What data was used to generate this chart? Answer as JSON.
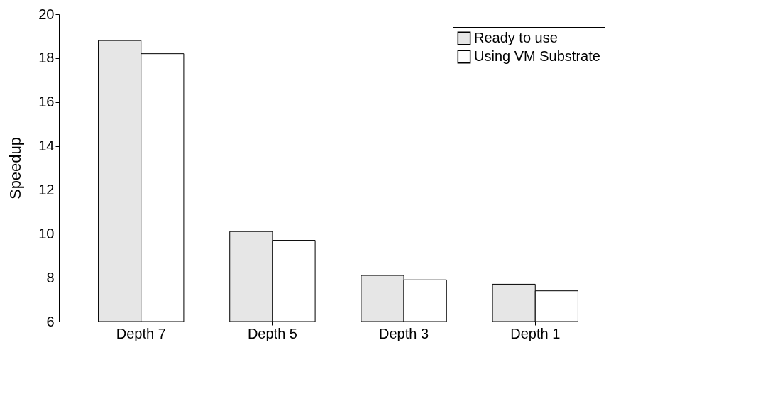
{
  "chart_data": {
    "type": "bar",
    "ylabel": "Speedup",
    "categories": [
      "Depth 7",
      "Depth 5",
      "Depth 3",
      "Depth 1"
    ],
    "series": [
      {
        "name": "Ready to use",
        "color": "#e6e6e6",
        "values": [
          18.8,
          10.1,
          8.1,
          7.7
        ]
      },
      {
        "name": "Using VM Substrate",
        "color": "#ffffff",
        "values": [
          18.2,
          9.7,
          7.9,
          7.4
        ]
      }
    ],
    "ylim": [
      6,
      20
    ],
    "yticks": [
      6,
      8,
      10,
      12,
      14,
      16,
      18,
      20
    ],
    "grid": false,
    "legend": "top right"
  }
}
